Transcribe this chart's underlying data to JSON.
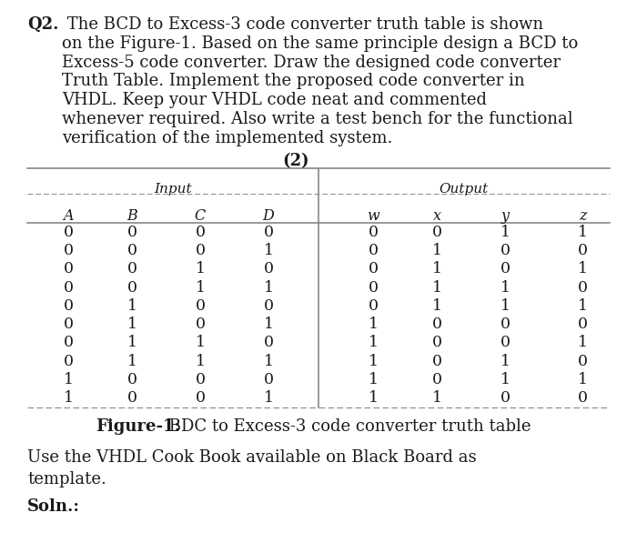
{
  "input_cols": [
    "A",
    "B",
    "C",
    "D"
  ],
  "output_cols": [
    "w",
    "x",
    "y",
    "z"
  ],
  "table_data": [
    [
      0,
      0,
      0,
      0,
      0,
      0,
      1,
      1
    ],
    [
      0,
      0,
      0,
      1,
      0,
      1,
      0,
      0
    ],
    [
      0,
      0,
      1,
      0,
      0,
      1,
      0,
      1
    ],
    [
      0,
      0,
      1,
      1,
      0,
      1,
      1,
      0
    ],
    [
      0,
      1,
      0,
      0,
      0,
      1,
      1,
      1
    ],
    [
      0,
      1,
      0,
      1,
      1,
      0,
      0,
      0
    ],
    [
      0,
      1,
      1,
      0,
      1,
      0,
      0,
      1
    ],
    [
      0,
      1,
      1,
      1,
      1,
      0,
      1,
      0
    ],
    [
      1,
      0,
      0,
      0,
      1,
      0,
      1,
      1
    ],
    [
      1,
      0,
      0,
      1,
      1,
      1,
      0,
      0
    ]
  ],
  "bg_color": "#ffffff",
  "text_color": "#1a1a1a",
  "line_color": "#888888",
  "q2_bold": "Q2.",
  "q2_rest": " The BCD to Excess-3 code converter truth table is shown\non the Figure-1. Based on the same principle design a BCD to\nExcess-5 code converter. Draw the designed code converter\nTruth Table. Implement the proposed code converter in\nVHDL. Keep your VHDL code neat and commented\nwhenever required. Also write a test bench for the functional\nverification of the implemented system.",
  "mark_bold": "(2)",
  "label_input": "Input",
  "label_output": "Output",
  "figure_label_bold": "Figure-1:",
  "figure_label_rest": " BDC to Excess-3 code converter truth table",
  "bottom_line1": "Use the VHDL Cook Book available on Black Board as",
  "bottom_line2": "template.",
  "soln_bold": "Soln.:",
  "font_size_body": 13.0,
  "font_size_table": 12.5,
  "font_size_caption": 13.0,
  "fig_w": 7.0,
  "fig_h": 5.97,
  "dpi": 100
}
